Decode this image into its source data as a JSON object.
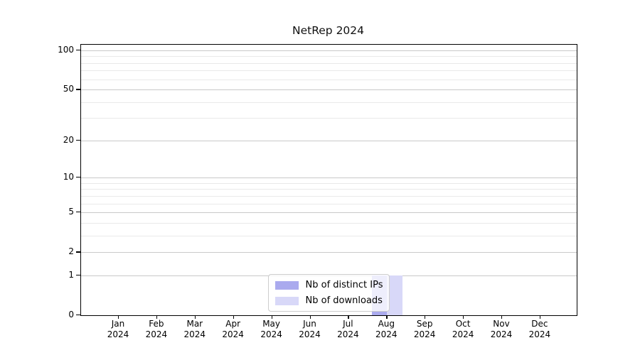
{
  "chart_data": {
    "type": "bar",
    "title": "NetRep 2024",
    "categories": [
      "Jan",
      "Feb",
      "Mar",
      "Apr",
      "May",
      "Jun",
      "Jul",
      "Aug",
      "Sep",
      "Oct",
      "Nov",
      "Dec"
    ],
    "category_year": "2024",
    "series": [
      {
        "name": "Nb of distinct IPs",
        "color": "#aaaaee",
        "values": [
          0,
          0,
          0,
          0,
          0,
          0,
          0,
          1,
          0,
          0,
          0,
          0
        ]
      },
      {
        "name": "Nb of downloads",
        "color": "#d8d8f8",
        "values": [
          0,
          0,
          0,
          0,
          0,
          0,
          0,
          1,
          0,
          0,
          0,
          0
        ]
      }
    ],
    "y_axis": {
      "scale": "log1p",
      "major_ticks": [
        0,
        1,
        2,
        5,
        10,
        20,
        50,
        100
      ],
      "minor_ticks": [
        3,
        4,
        6,
        7,
        8,
        9,
        30,
        40,
        60,
        70,
        80,
        90
      ],
      "ylim": [
        0,
        110
      ]
    },
    "grid": true,
    "legend_position": "lower center"
  }
}
